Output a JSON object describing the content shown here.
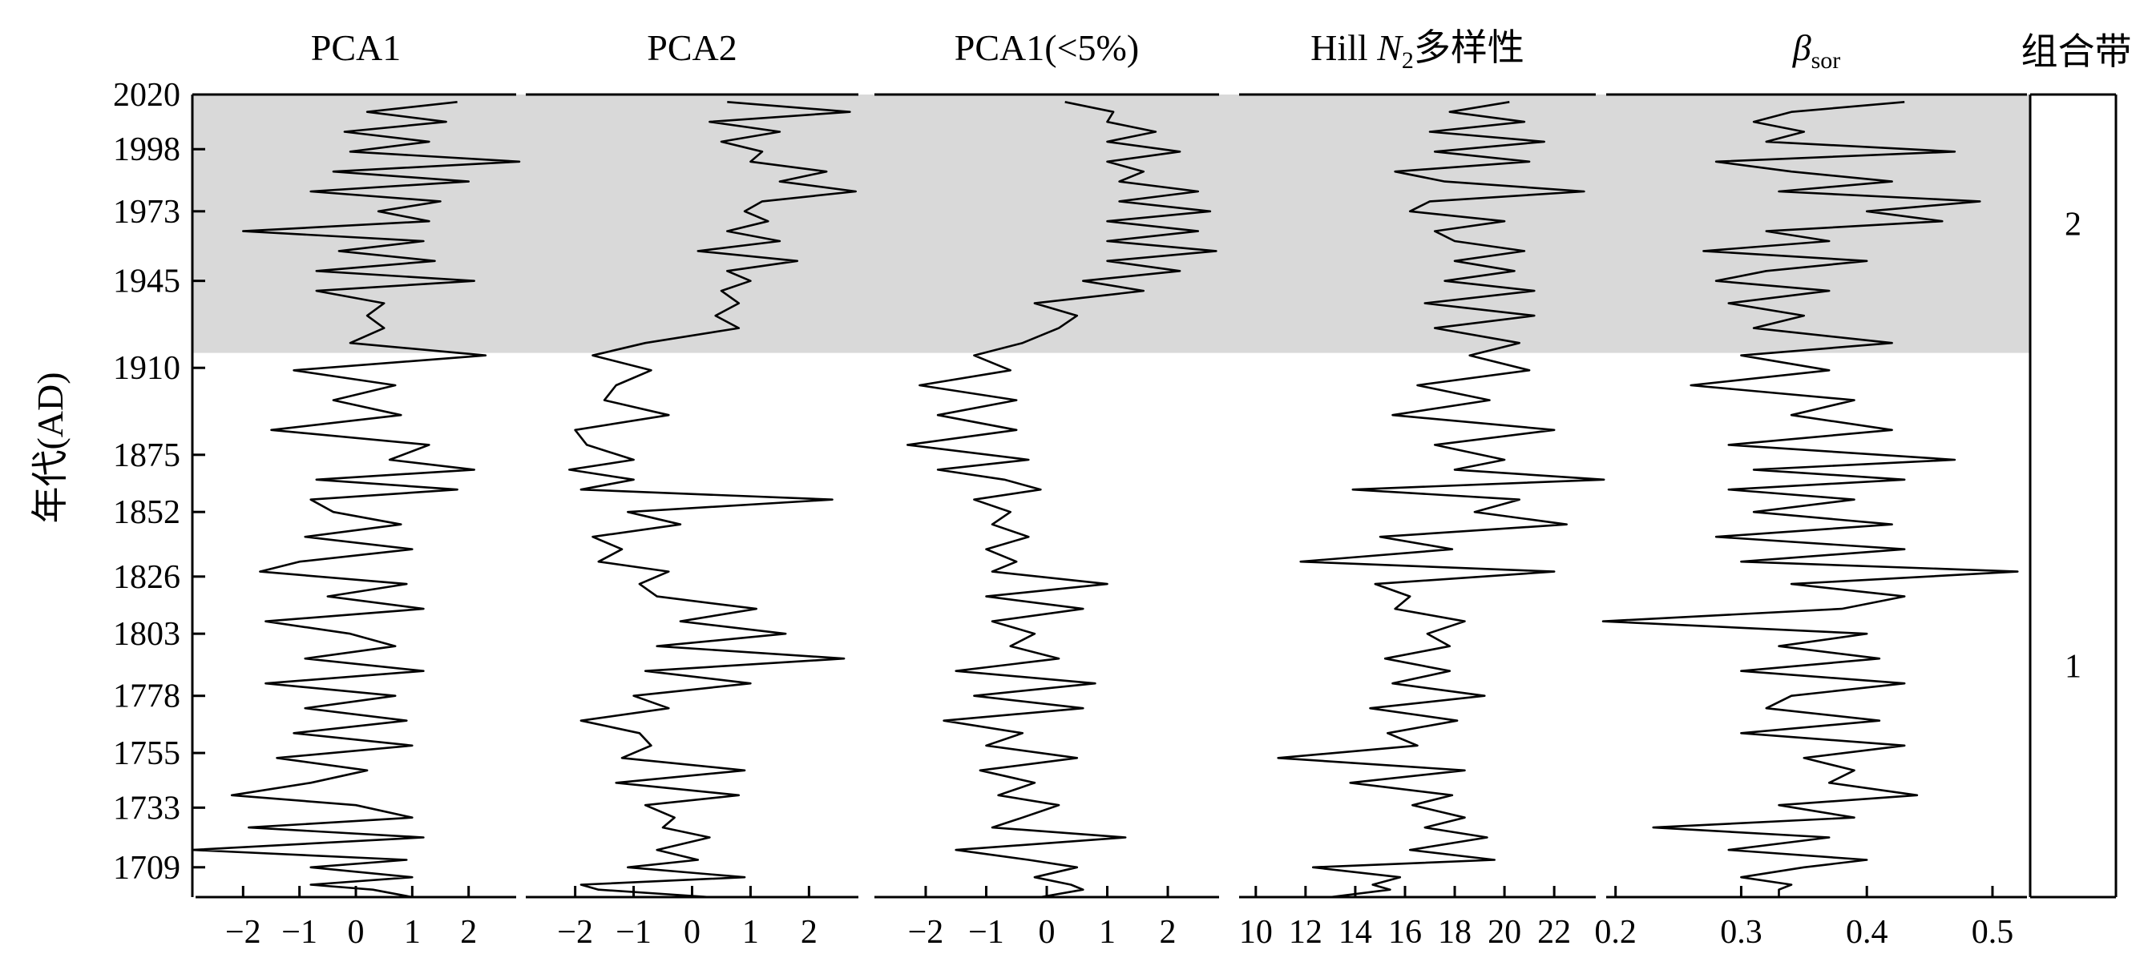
{
  "chart_data": {
    "type": "line",
    "y_axis": {
      "label": "年代(AD)",
      "ticks": [
        2020,
        1998,
        1973,
        1945,
        1910,
        1875,
        1852,
        1826,
        1803,
        1778,
        1755,
        1733,
        1709
      ]
    },
    "shaded_band": {
      "from_year": 1916,
      "to_year": 2020,
      "color": "#d9d9d9"
    },
    "zones": {
      "title": "组合带",
      "labels": [
        {
          "label": "2",
          "year": 1968
        },
        {
          "label": "1",
          "year": 1790
        }
      ]
    },
    "panels": [
      {
        "title": "PCA1",
        "xlim": [
          -2.9,
          2.9
        ],
        "xticks": [
          -2,
          -1,
          0,
          1,
          2
        ],
        "xtick_labels": [
          "−2",
          "−1",
          "0",
          "1",
          "2"
        ],
        "series": [
          {
            "values": [
              1.8,
              0.2,
              1.6,
              -0.2,
              1.3,
              -0.1,
              2.9,
              -0.4,
              2.0,
              -0.8,
              1.5,
              0.4,
              1.3,
              -2.0,
              1.2,
              -0.3,
              1.4,
              -0.7,
              2.1,
              -0.7,
              0.5,
              0.2,
              0.5,
              -0.1,
              2.3,
              -1.1,
              0.7,
              -0.4,
              0.8,
              -1.5,
              1.3,
              0.6,
              2.1,
              -0.7,
              1.8,
              -0.8,
              -0.4,
              0.8,
              -0.9,
              1.0,
              -1.0,
              -1.7,
              0.9,
              -0.5,
              1.2,
              -1.6,
              -0.1,
              0.7,
              -0.9,
              1.2,
              -1.6,
              0.7,
              -0.9,
              0.9,
              -1.1,
              1.0,
              -1.4,
              0.2,
              -0.8,
              -2.2,
              0.0,
              1.0,
              -1.9,
              1.2,
              -2.9,
              0.9,
              -0.8,
              1.0,
              -0.8,
              0.3,
              1.0
            ],
            "years": [
              2017,
              2013,
              2009,
              2005,
              2001,
              1997,
              1993,
              1989,
              1985,
              1981,
              1977,
              1973,
              1969,
              1965,
              1961,
              1957,
              1953,
              1949,
              1945,
              1941,
              1936,
              1931,
              1926,
              1920,
              1915,
              1909,
              1903,
              1897,
              1891,
              1885,
              1879,
              1873,
              1869,
              1865,
              1861,
              1857,
              1852,
              1847,
              1842,
              1837,
              1832,
              1828,
              1823,
              1818,
              1813,
              1808,
              1803,
              1798,
              1793,
              1788,
              1783,
              1778,
              1773,
              1768,
              1763,
              1758,
              1753,
              1748,
              1743,
              1738,
              1734,
              1729,
              1725,
              1721,
              1716,
              1712,
              1709,
              1705,
              1702,
              1700,
              1697
            ]
          }
        ]
      },
      {
        "title": "PCA2",
        "xlim": [
          -2.9,
          2.9
        ],
        "xticks": [
          -2,
          -1,
          0,
          1,
          2
        ],
        "xtick_labels": [
          "−2",
          "−1",
          "0",
          "1",
          "2"
        ],
        "series": [
          {
            "values": [
              0.6,
              2.7,
              0.3,
              1.5,
              0.5,
              1.2,
              1.0,
              2.3,
              1.5,
              2.8,
              1.2,
              0.9,
              1.3,
              0.6,
              1.5,
              0.1,
              1.8,
              0.6,
              1.0,
              0.5,
              0.8,
              0.4,
              0.8,
              -0.8,
              -1.7,
              -0.7,
              -1.3,
              -1.5,
              -0.4,
              -2.0,
              -1.8,
              -1.0,
              -2.1,
              -1.0,
              -1.9,
              2.4,
              -1.1,
              -0.2,
              -1.7,
              -1.2,
              -1.6,
              -0.4,
              -0.9,
              -0.6,
              1.1,
              -0.2,
              1.6,
              -0.6,
              2.6,
              -0.8,
              1.0,
              -1.0,
              -0.4,
              -1.9,
              -0.9,
              -0.7,
              -1.2,
              0.9,
              -1.3,
              0.8,
              -0.8,
              -0.3,
              -0.5,
              0.3,
              -0.6,
              0.1,
              -1.1,
              0.9,
              -1.9,
              -1.6,
              0.3
            ],
            "years": [
              2017,
              2013,
              2009,
              2005,
              2001,
              1997,
              1993,
              1989,
              1985,
              1981,
              1977,
              1973,
              1969,
              1965,
              1961,
              1957,
              1953,
              1949,
              1945,
              1941,
              1936,
              1931,
              1926,
              1920,
              1915,
              1909,
              1903,
              1897,
              1891,
              1885,
              1879,
              1873,
              1869,
              1865,
              1861,
              1857,
              1852,
              1847,
              1842,
              1837,
              1832,
              1828,
              1823,
              1818,
              1813,
              1808,
              1803,
              1798,
              1793,
              1788,
              1783,
              1778,
              1773,
              1768,
              1763,
              1758,
              1753,
              1748,
              1743,
              1738,
              1734,
              1729,
              1725,
              1721,
              1716,
              1712,
              1709,
              1705,
              1702,
              1700,
              1697
            ]
          }
        ]
      },
      {
        "title": "PCA1(<5%)",
        "xlim": [
          -2.9,
          2.9
        ],
        "xticks": [
          -2,
          -1,
          0,
          1,
          2
        ],
        "xtick_labels": [
          "−2",
          "−1",
          "0",
          "1",
          "2"
        ],
        "series": [
          {
            "values": [
              0.3,
              1.1,
              1.0,
              1.8,
              1.0,
              2.2,
              1.0,
              1.6,
              1.2,
              2.5,
              1.2,
              2.7,
              1.0,
              2.5,
              1.0,
              2.8,
              1.0,
              2.2,
              0.6,
              1.6,
              -0.2,
              0.5,
              0.2,
              -0.4,
              -1.2,
              -0.6,
              -2.1,
              -0.5,
              -1.8,
              -0.5,
              -2.3,
              -0.3,
              -1.8,
              -0.7,
              -0.1,
              -1.2,
              -0.6,
              -0.9,
              -0.3,
              -1.0,
              -0.5,
              -0.9,
              1.0,
              -1.0,
              0.6,
              -0.9,
              -0.2,
              -0.6,
              0.2,
              -1.5,
              0.8,
              -1.2,
              0.6,
              -1.7,
              -0.4,
              -1.0,
              0.5,
              -1.1,
              -0.2,
              -0.8,
              0.2,
              -0.4,
              -0.9,
              1.3,
              -1.5,
              -0.3,
              0.5,
              -0.2,
              0.4,
              0.6,
              -0.1
            ],
            "years": [
              2017,
              2013,
              2009,
              2005,
              2001,
              1997,
              1993,
              1989,
              1985,
              1981,
              1977,
              1973,
              1969,
              1965,
              1961,
              1957,
              1953,
              1949,
              1945,
              1941,
              1936,
              1931,
              1926,
              1920,
              1915,
              1909,
              1903,
              1897,
              1891,
              1885,
              1879,
              1873,
              1869,
              1865,
              1861,
              1857,
              1852,
              1847,
              1842,
              1837,
              1832,
              1828,
              1823,
              1818,
              1813,
              1808,
              1803,
              1798,
              1793,
              1788,
              1783,
              1778,
              1773,
              1768,
              1763,
              1758,
              1753,
              1748,
              1743,
              1738,
              1734,
              1729,
              1725,
              1721,
              1716,
              1712,
              1709,
              1705,
              1702,
              1700,
              1697
            ]
          }
        ]
      },
      {
        "title": "Hill N2多样性",
        "title_parts": {
          "prefix": "Hill ",
          "italic": "N",
          "sub": "2",
          "suffix": "多样性"
        },
        "xlim": [
          9.2,
          23.8
        ],
        "xticks": [
          10,
          12,
          14,
          16,
          18,
          20,
          22
        ],
        "xtick_labels": [
          "10",
          "12",
          "14",
          "16",
          "18",
          "20",
          "22"
        ],
        "series": [
          {
            "values": [
              20.2,
              17.8,
              20.8,
              17.0,
              21.6,
              17.2,
              21.0,
              15.6,
              17.6,
              23.2,
              17.0,
              16.2,
              20.0,
              17.2,
              18.0,
              20.8,
              18.0,
              20.4,
              17.6,
              21.2,
              16.8,
              21.2,
              17.2,
              20.6,
              18.6,
              21.0,
              16.5,
              19.4,
              15.5,
              22.0,
              17.2,
              20.0,
              18.0,
              24.0,
              13.9,
              20.6,
              18.8,
              22.5,
              15.0,
              17.9,
              11.8,
              22.0,
              14.8,
              16.2,
              15.6,
              18.4,
              16.9,
              17.8,
              15.2,
              17.8,
              15.5,
              19.2,
              14.6,
              18.1,
              15.3,
              16.5,
              10.9,
              18.4,
              13.8,
              17.9,
              16.3,
              18.4,
              16.8,
              19.3,
              16.2,
              19.6,
              12.3,
              15.8,
              14.7,
              15.4,
              13.0
            ],
            "years": [
              2017,
              2013,
              2009,
              2005,
              2001,
              1997,
              1993,
              1989,
              1985,
              1981,
              1977,
              1973,
              1969,
              1965,
              1961,
              1957,
              1953,
              1949,
              1945,
              1941,
              1936,
              1931,
              1926,
              1920,
              1915,
              1909,
              1903,
              1897,
              1891,
              1885,
              1879,
              1873,
              1869,
              1865,
              1861,
              1857,
              1852,
              1847,
              1842,
              1837,
              1832,
              1828,
              1823,
              1818,
              1813,
              1808,
              1803,
              1798,
              1793,
              1788,
              1783,
              1778,
              1773,
              1768,
              1763,
              1758,
              1753,
              1748,
              1743,
              1738,
              1734,
              1729,
              1725,
              1721,
              1716,
              1712,
              1709,
              1705,
              1702,
              1700,
              1697
            ]
          }
        ]
      },
      {
        "title": "βsor",
        "title_parts": {
          "italic": "β",
          "sub": "sor"
        },
        "xlim": [
          0.19,
          0.53
        ],
        "xticks": [
          0.2,
          0.3,
          0.4,
          0.5
        ],
        "xtick_labels": [
          "0.2",
          "0.3",
          "0.4",
          "0.5"
        ],
        "series": [
          {
            "values": [
              0.43,
              0.34,
              0.31,
              0.35,
              0.32,
              0.47,
              0.28,
              0.34,
              0.42,
              0.33,
              0.49,
              0.4,
              0.46,
              0.32,
              0.37,
              0.27,
              0.4,
              0.32,
              0.28,
              0.37,
              0.29,
              0.35,
              0.31,
              0.42,
              0.3,
              0.37,
              0.26,
              0.39,
              0.34,
              0.42,
              0.29,
              0.47,
              0.31,
              0.43,
              0.29,
              0.39,
              0.31,
              0.42,
              0.28,
              0.43,
              0.3,
              0.52,
              0.34,
              0.43,
              0.38,
              0.19,
              0.4,
              0.33,
              0.41,
              0.3,
              0.43,
              0.34,
              0.32,
              0.41,
              0.3,
              0.43,
              0.35,
              0.39,
              0.37,
              0.44,
              0.33,
              0.39,
              0.23,
              0.37,
              0.29,
              0.4,
              0.35,
              0.3,
              0.34,
              0.33,
              0.33
            ],
            "years": [
              2017,
              2013,
              2009,
              2005,
              2001,
              1997,
              1993,
              1989,
              1985,
              1981,
              1977,
              1973,
              1969,
              1965,
              1961,
              1957,
              1953,
              1949,
              1945,
              1941,
              1936,
              1931,
              1926,
              1920,
              1915,
              1909,
              1903,
              1897,
              1891,
              1885,
              1879,
              1873,
              1869,
              1865,
              1861,
              1857,
              1852,
              1847,
              1842,
              1837,
              1832,
              1828,
              1823,
              1818,
              1813,
              1808,
              1803,
              1798,
              1793,
              1788,
              1783,
              1778,
              1773,
              1768,
              1763,
              1758,
              1753,
              1748,
              1743,
              1738,
              1734,
              1729,
              1725,
              1721,
              1716,
              1712,
              1709,
              1705,
              1702,
              1700,
              1697
            ]
          }
        ]
      }
    ]
  }
}
